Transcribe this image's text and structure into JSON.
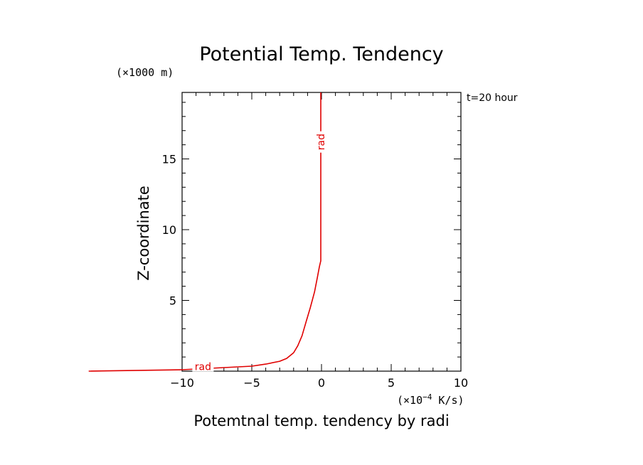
{
  "chart_data": {
    "type": "line",
    "title": "Potential Temp. Tendency",
    "xlabel": "Potemtnal temp. tendency by radi",
    "ylabel": "Z-coordinate",
    "x_unit_prefix": "(×10",
    "x_unit_exp": "−4",
    "x_unit_suffix": " K/s)",
    "y_unit": "(×1000 m)",
    "time_label": "t=20 hour",
    "xlim": [
      -10,
      10
    ],
    "ylim": [
      0,
      19.7
    ],
    "x_ticks": [
      -10,
      -5,
      0,
      5,
      10
    ],
    "x_tick_labels": [
      "−10",
      "−5",
      "0",
      "5",
      "10"
    ],
    "y_ticks": [
      5,
      10,
      15
    ],
    "y_tick_labels": [
      "5",
      "10",
      "15"
    ],
    "grid": false,
    "series": [
      {
        "name": "rad",
        "color": "#e00000",
        "label_text": "rad",
        "x": [
          -16.7,
          -10.0,
          -7.0,
          -5.0,
          -4.0,
          -3.0,
          -2.5,
          -2.0,
          -1.7,
          -1.4,
          -1.1,
          -0.8,
          -0.5,
          -0.3,
          -0.15,
          -0.05,
          -0.05,
          -0.05
        ],
        "y": [
          0.0,
          0.1,
          0.25,
          0.35,
          0.5,
          0.7,
          0.9,
          1.3,
          1.8,
          2.5,
          3.5,
          4.5,
          5.6,
          6.6,
          7.4,
          7.8,
          15.0,
          19.7
        ]
      }
    ]
  }
}
